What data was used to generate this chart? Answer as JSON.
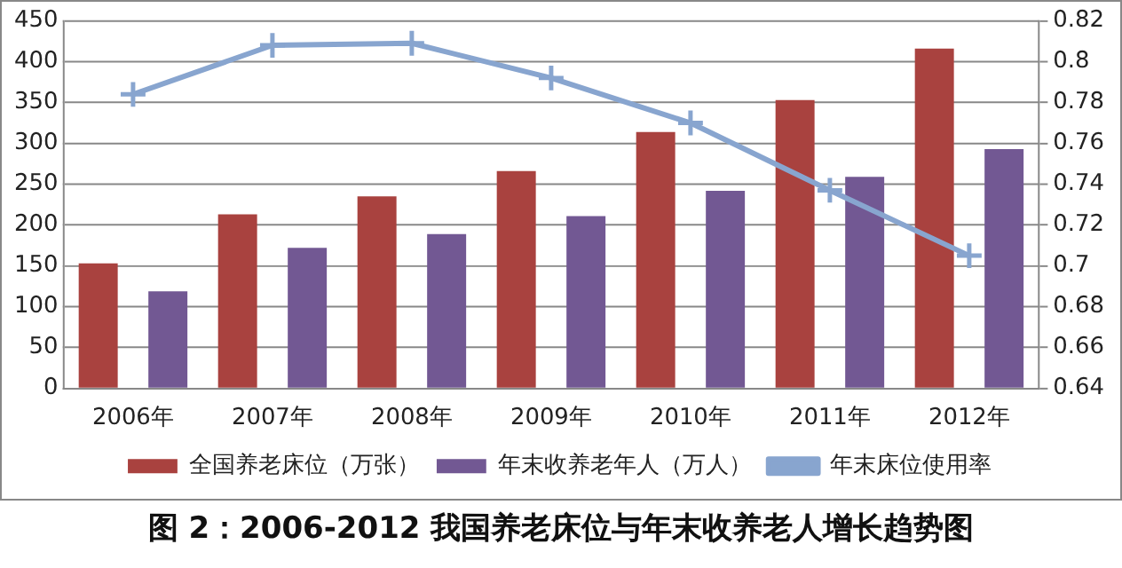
{
  "chart_data": {
    "type": "bar",
    "title": "图 2：2006-2012 我国养老床位与年末收养老人增长趋势图",
    "categories": [
      "2006年",
      "2007年",
      "2008年",
      "2009年",
      "2010年",
      "2011年",
      "2012年"
    ],
    "series": [
      {
        "name": "全国养老床位（万张）",
        "color": "#a9423f",
        "values": [
          153,
          213,
          235,
          266,
          314,
          353,
          416
        ]
      },
      {
        "name": "年末收养老年人（万人）",
        "color": "#725893",
        "values": [
          119,
          172,
          189,
          211,
          242,
          259,
          293
        ]
      },
      {
        "name": "年末床位使用率",
        "type": "line",
        "axis": "y2",
        "color": "#88a5cf",
        "marker": "cross",
        "values": [
          0.784,
          0.808,
          0.809,
          0.792,
          0.77,
          0.737,
          0.705
        ]
      }
    ],
    "ylim": [
      0,
      450
    ],
    "yticks": [
      0,
      50,
      100,
      150,
      200,
      250,
      300,
      350,
      400,
      450
    ],
    "y2lim": [
      0.64,
      0.82
    ],
    "y2ticks": [
      0.64,
      0.66,
      0.68,
      0.7,
      0.72,
      0.74,
      0.76,
      0.78,
      0.8,
      0.82
    ],
    "grid": "y",
    "legend": "bottom"
  }
}
